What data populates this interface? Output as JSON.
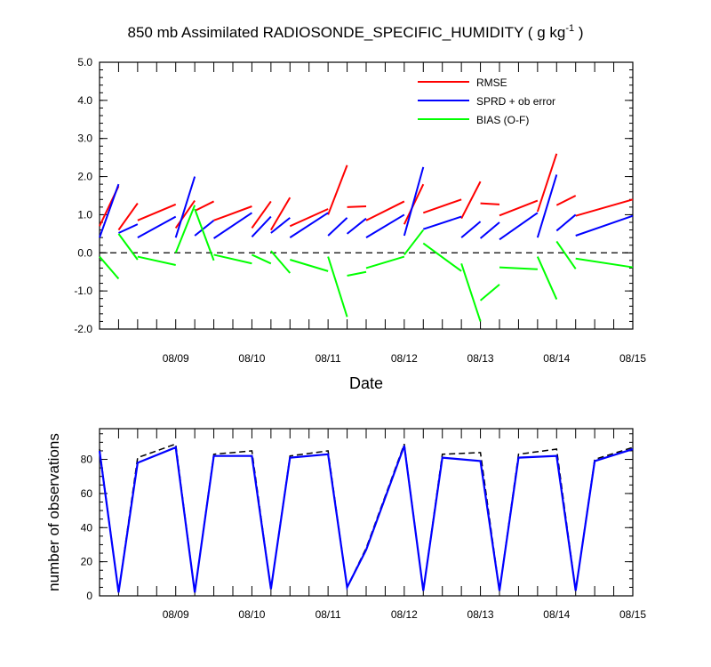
{
  "title": "850 mb Assimilated RADIOSONDE_SPECIFIC_HUMIDITY ( g kg",
  "title_sup": "-1",
  "title_tail": " )",
  "chart_data": [
    {
      "type": "line",
      "ylim": [
        -2.0,
        5.0
      ],
      "xlim": [
        0.0,
        7.0
      ],
      "x_unit": "days since 08/08 00Z",
      "yticks": [
        "-2.0",
        "-1.0",
        "0.0",
        "1.0",
        "2.0",
        "3.0",
        "4.0",
        "5.0"
      ],
      "xticks": [
        "08/09",
        "08/10",
        "08/11",
        "08/12",
        "08/13",
        "08/14",
        "08/15"
      ],
      "xlabel": "Date",
      "legend_position": "top-right",
      "zero_line": "dashed",
      "series": [
        {
          "name": "RMSE",
          "color": "#ff0000",
          "segments": [
            [
              [
                0.0,
                0.7
              ],
              [
                0.25,
                1.75
              ]
            ],
            [
              [
                0.25,
                0.6
              ],
              [
                0.5,
                1.3
              ]
            ],
            [
              [
                0.5,
                0.85
              ],
              [
                1.0,
                1.27
              ]
            ],
            [
              [
                1.0,
                0.65
              ],
              [
                1.25,
                1.37
              ]
            ],
            [
              [
                1.25,
                1.1
              ],
              [
                1.5,
                1.35
              ]
            ],
            [
              [
                1.5,
                0.85
              ],
              [
                2.0,
                1.22
              ]
            ],
            [
              [
                2.0,
                0.65
              ],
              [
                2.25,
                1.35
              ]
            ],
            [
              [
                2.25,
                0.6
              ],
              [
                2.5,
                1.45
              ]
            ],
            [
              [
                2.5,
                0.7
              ],
              [
                3.0,
                1.15
              ]
            ],
            [
              [
                3.0,
                1.0
              ],
              [
                3.25,
                2.3
              ]
            ],
            [
              [
                3.25,
                1.2
              ],
              [
                3.5,
                1.22
              ]
            ],
            [
              [
                3.5,
                0.85
              ],
              [
                4.0,
                1.35
              ]
            ],
            [
              [
                4.0,
                0.75
              ],
              [
                4.25,
                1.8
              ]
            ],
            [
              [
                4.25,
                1.05
              ],
              [
                4.75,
                1.4
              ]
            ],
            [
              [
                4.75,
                0.9
              ],
              [
                5.0,
                1.87
              ]
            ],
            [
              [
                5.0,
                1.3
              ],
              [
                5.25,
                1.27
              ]
            ],
            [
              [
                5.25,
                0.98
              ],
              [
                5.75,
                1.37
              ]
            ],
            [
              [
                5.75,
                1.08
              ],
              [
                6.0,
                2.6
              ]
            ],
            [
              [
                6.0,
                1.25
              ],
              [
                6.25,
                1.5
              ]
            ],
            [
              [
                6.25,
                0.97
              ],
              [
                7.0,
                1.4
              ]
            ]
          ]
        },
        {
          "name": "SPRD + ob error",
          "color": "#0000ff",
          "segments": [
            [
              [
                0.0,
                0.4
              ],
              [
                0.25,
                1.8
              ]
            ],
            [
              [
                0.25,
                0.52
              ],
              [
                0.5,
                0.75
              ]
            ],
            [
              [
                0.5,
                0.4
              ],
              [
                1.0,
                0.95
              ]
            ],
            [
              [
                1.0,
                0.4
              ],
              [
                1.25,
                2.0
              ]
            ],
            [
              [
                1.25,
                0.45
              ],
              [
                1.5,
                0.85
              ]
            ],
            [
              [
                1.5,
                0.38
              ],
              [
                2.0,
                1.05
              ]
            ],
            [
              [
                2.0,
                0.42
              ],
              [
                2.25,
                0.95
              ]
            ],
            [
              [
                2.25,
                0.52
              ],
              [
                2.5,
                0.92
              ]
            ],
            [
              [
                2.5,
                0.4
              ],
              [
                3.0,
                1.05
              ]
            ],
            [
              [
                3.0,
                0.45
              ],
              [
                3.25,
                0.92
              ]
            ],
            [
              [
                3.25,
                0.5
              ],
              [
                3.5,
                0.9
              ]
            ],
            [
              [
                3.5,
                0.4
              ],
              [
                4.0,
                1.0
              ]
            ],
            [
              [
                4.0,
                0.45
              ],
              [
                4.25,
                2.25
              ]
            ],
            [
              [
                4.25,
                0.62
              ],
              [
                4.75,
                0.95
              ]
            ],
            [
              [
                4.75,
                0.4
              ],
              [
                5.0,
                0.82
              ]
            ],
            [
              [
                5.0,
                0.38
              ],
              [
                5.25,
                0.8
              ]
            ],
            [
              [
                5.25,
                0.35
              ],
              [
                5.75,
                1.05
              ]
            ],
            [
              [
                5.75,
                0.4
              ],
              [
                6.0,
                2.05
              ]
            ],
            [
              [
                6.0,
                0.58
              ],
              [
                6.25,
                1.0
              ]
            ],
            [
              [
                6.25,
                0.45
              ],
              [
                7.0,
                0.97
              ]
            ]
          ]
        },
        {
          "name": "BIAS (O-F)",
          "color": "#00ff00",
          "segments": [
            [
              [
                0.0,
                -0.1
              ],
              [
                0.25,
                -0.68
              ]
            ],
            [
              [
                0.25,
                0.5
              ],
              [
                0.5,
                -0.18
              ]
            ],
            [
              [
                0.5,
                -0.1
              ],
              [
                1.0,
                -0.32
              ]
            ],
            [
              [
                1.0,
                0.0
              ],
              [
                1.25,
                1.25
              ]
            ],
            [
              [
                1.25,
                1.15
              ],
              [
                1.5,
                -0.2
              ]
            ],
            [
              [
                1.5,
                -0.05
              ],
              [
                2.0,
                -0.28
              ]
            ],
            [
              [
                2.0,
                -0.05
              ],
              [
                2.25,
                -0.28
              ]
            ],
            [
              [
                2.25,
                0.05
              ],
              [
                2.5,
                -0.53
              ]
            ],
            [
              [
                2.5,
                -0.18
              ],
              [
                3.0,
                -0.48
              ]
            ],
            [
              [
                3.0,
                -0.1
              ],
              [
                3.25,
                -1.68
              ]
            ],
            [
              [
                3.25,
                -0.6
              ],
              [
                3.5,
                -0.5
              ]
            ],
            [
              [
                3.5,
                -0.4
              ],
              [
                4.0,
                -0.1
              ]
            ],
            [
              [
                4.0,
                -0.05
              ],
              [
                4.25,
                0.6
              ]
            ],
            [
              [
                4.25,
                0.25
              ],
              [
                4.75,
                -0.48
              ]
            ],
            [
              [
                4.75,
                -0.28
              ],
              [
                5.0,
                -1.8
              ]
            ],
            [
              [
                5.0,
                -1.25
              ],
              [
                5.25,
                -0.83
              ]
            ],
            [
              [
                5.25,
                -0.38
              ],
              [
                5.75,
                -0.43
              ]
            ],
            [
              [
                5.75,
                -0.1
              ],
              [
                6.0,
                -1.22
              ]
            ],
            [
              [
                6.0,
                0.3
              ],
              [
                6.25,
                -0.42
              ]
            ],
            [
              [
                6.25,
                -0.15
              ],
              [
                7.0,
                -0.38
              ]
            ]
          ]
        }
      ]
    },
    {
      "type": "line",
      "ylim": [
        0,
        98
      ],
      "xlim": [
        0.0,
        7.0
      ],
      "yticks": [
        "0",
        "20",
        "40",
        "60",
        "80"
      ],
      "xticks": [
        "08/09",
        "08/10",
        "08/11",
        "08/12",
        "08/13",
        "08/14",
        "08/15"
      ],
      "ylabel": "number of observations",
      "series": [
        {
          "name": "",
          "color": "#000000",
          "style": "dashed",
          "points": [
            [
              0.0,
              86
            ],
            [
              0.25,
              2
            ],
            [
              0.5,
              81
            ],
            [
              1.0,
              89
            ],
            [
              1.25,
              2
            ],
            [
              1.5,
              83
            ],
            [
              2.0,
              85
            ],
            [
              2.25,
              4
            ],
            [
              2.5,
              82
            ],
            [
              3.0,
              85
            ],
            [
              3.25,
              5
            ],
            [
              3.5,
              28
            ],
            [
              4.0,
              89
            ],
            [
              4.25,
              3
            ],
            [
              4.5,
              83
            ],
            [
              5.0,
              84
            ],
            [
              5.25,
              3
            ],
            [
              5.5,
              83
            ],
            [
              6.0,
              86
            ],
            [
              6.25,
              3
            ],
            [
              6.5,
              80
            ],
            [
              7.0,
              87
            ]
          ]
        },
        {
          "name": "",
          "color": "#0000ff",
          "style": "solid",
          "points": [
            [
              0.0,
              85
            ],
            [
              0.25,
              2
            ],
            [
              0.5,
              78
            ],
            [
              1.0,
              87
            ],
            [
              1.25,
              2
            ],
            [
              1.5,
              82
            ],
            [
              2.0,
              82
            ],
            [
              2.25,
              4
            ],
            [
              2.5,
              81
            ],
            [
              3.0,
              83
            ],
            [
              3.25,
              5
            ],
            [
              3.5,
              27
            ],
            [
              4.0,
              88
            ],
            [
              4.25,
              3
            ],
            [
              4.5,
              81
            ],
            [
              5.0,
              79
            ],
            [
              5.25,
              3
            ],
            [
              5.5,
              81
            ],
            [
              6.0,
              82
            ],
            [
              6.25,
              3
            ],
            [
              6.5,
              79
            ],
            [
              7.0,
              86
            ]
          ]
        }
      ]
    }
  ]
}
